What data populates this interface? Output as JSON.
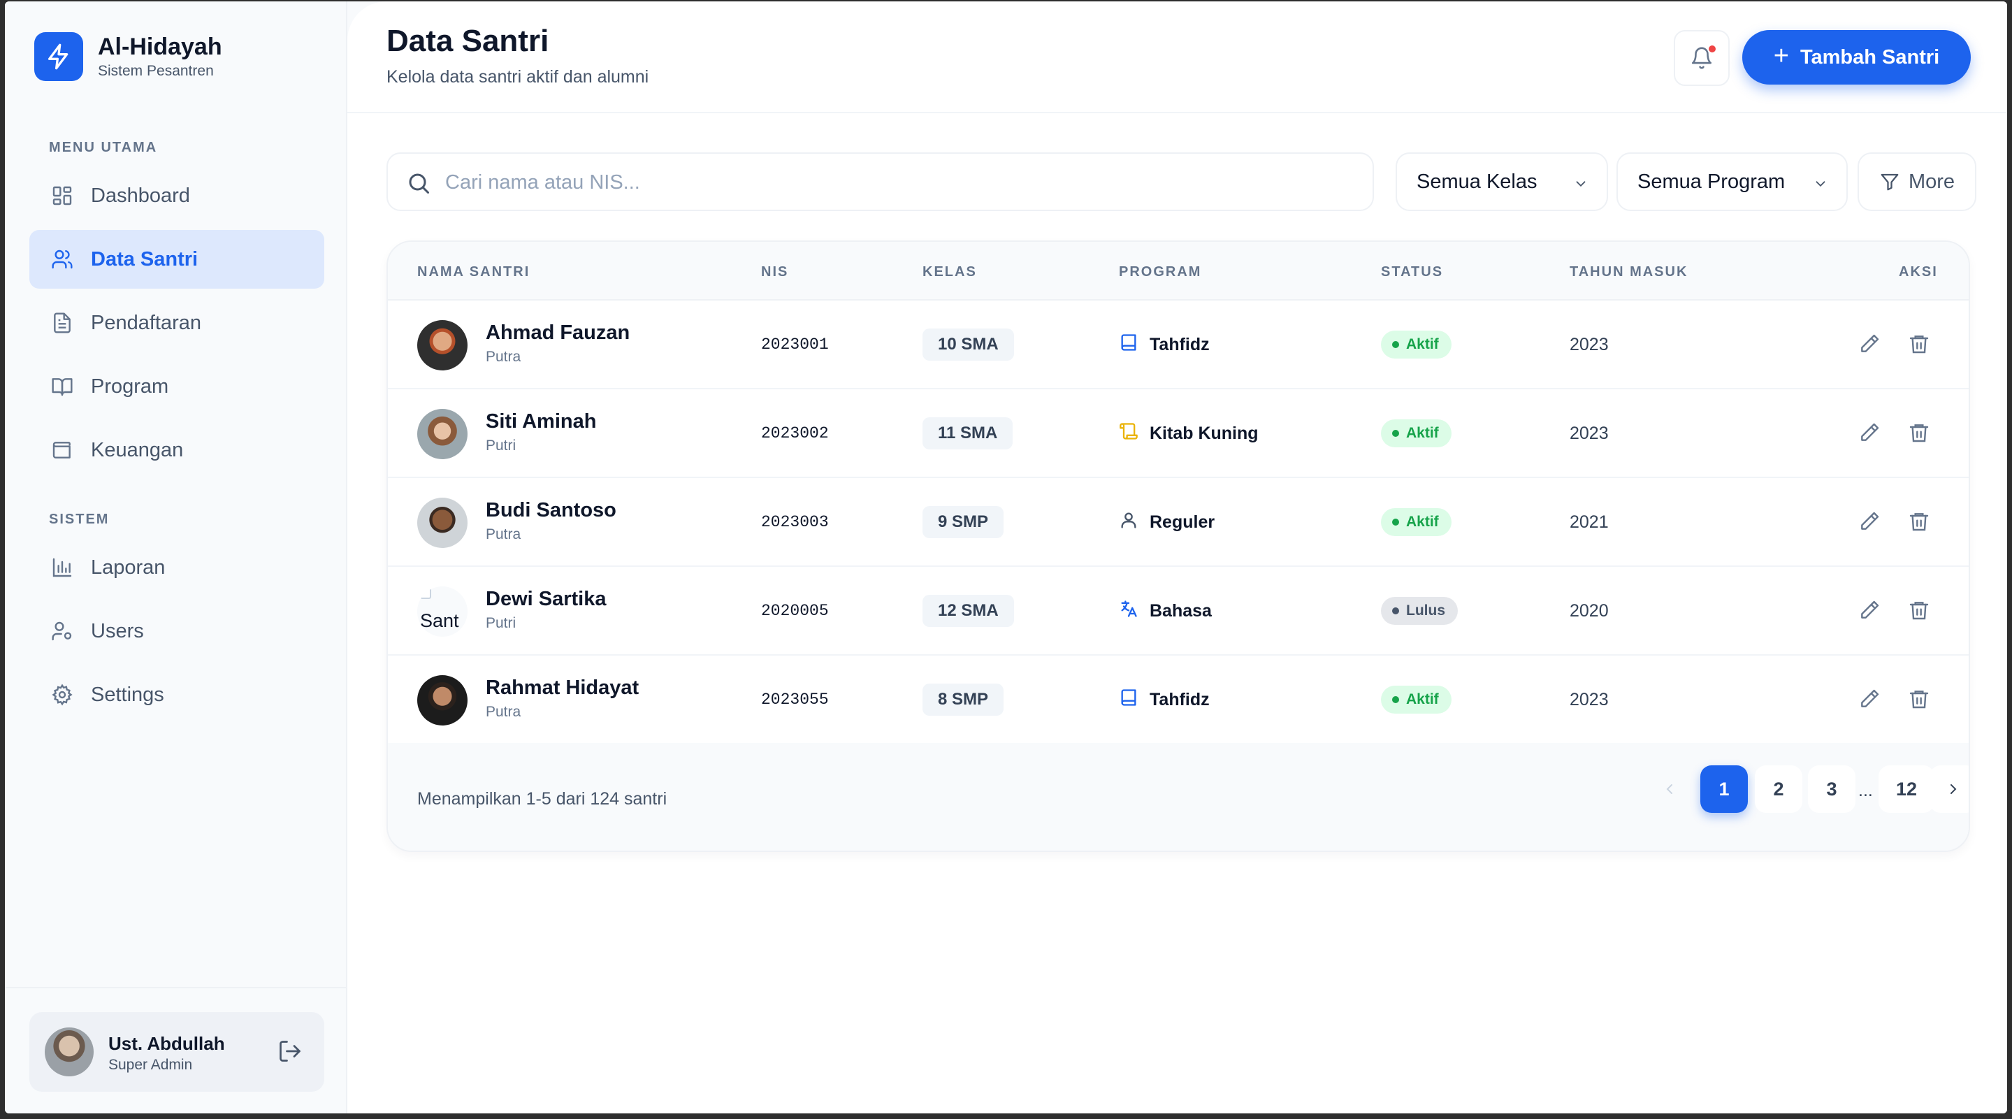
{
  "app": {
    "name": "Al-Hidayah",
    "subtitle": "Sistem Pesantren"
  },
  "sidebar": {
    "sections": [
      {
        "label": "MENU UTAMA"
      },
      {
        "label": "SISTEM"
      }
    ],
    "items": [
      {
        "label": "Dashboard",
        "icon": "grid-icon",
        "active": false
      },
      {
        "label": "Data Santri",
        "icon": "users-icon",
        "active": true
      },
      {
        "label": "Pendaftaran",
        "icon": "document-icon",
        "active": false
      },
      {
        "label": "Program",
        "icon": "book-open-icon",
        "active": false
      },
      {
        "label": "Keuangan",
        "icon": "wallet-icon",
        "active": false
      },
      {
        "label": "Laporan",
        "icon": "bar-chart-icon",
        "active": false
      },
      {
        "label": "Users",
        "icon": "user-cog-icon",
        "active": false
      },
      {
        "label": "Settings",
        "icon": "gear-icon",
        "active": false
      }
    ],
    "user": {
      "name": "Ust. Abdullah",
      "role": "Super Admin"
    }
  },
  "header": {
    "title": "Data Santri",
    "subtitle": "Kelola data santri aktif dan alumni",
    "add_button": "Tambah Santri"
  },
  "filters": {
    "search_placeholder": "Cari nama atau NIS...",
    "kelas": "Semua Kelas",
    "program": "Semua Program",
    "more": "More"
  },
  "table": {
    "columns": [
      "NAMA SANTRI",
      "NIS",
      "KELAS",
      "PROGRAM",
      "STATUS",
      "TAHUN MASUK",
      "AKSI"
    ],
    "rows": [
      {
        "name": "Ahmad Fauzan",
        "gender": "Putra",
        "nis": "2023001",
        "kelas": "10 SMA",
        "program": "Tahfidz",
        "program_icon": "book-icon",
        "status": "Aktif",
        "tahun": "2023"
      },
      {
        "name": "Siti Aminah",
        "gender": "Putri",
        "nis": "2023002",
        "kelas": "11 SMA",
        "program": "Kitab Kuning",
        "program_icon": "scroll-icon",
        "status": "Aktif",
        "tahun": "2023"
      },
      {
        "name": "Budi Santoso",
        "gender": "Putra",
        "nis": "2023003",
        "kelas": "9 SMP",
        "program": "Reguler",
        "program_icon": "user-icon",
        "status": "Aktif",
        "tahun": "2021"
      },
      {
        "name": "Dewi Sartika",
        "gender": "Putri",
        "nis": "2020005",
        "kelas": "12 SMA",
        "program": "Bahasa",
        "program_icon": "languages-icon",
        "status": "Lulus",
        "tahun": "2020"
      },
      {
        "name": "Rahmat Hidayat",
        "gender": "Putra",
        "nis": "2023055",
        "kelas": "8 SMP",
        "program": "Tahfidz",
        "program_icon": "book-icon",
        "status": "Aktif",
        "tahun": "2023"
      }
    ],
    "broken_avatar_alt": "Sant"
  },
  "footer": {
    "info": "Menampilkan 1-5 dari 124 santri",
    "pages": [
      "1",
      "2",
      "3",
      "12"
    ],
    "ellipsis": "...",
    "current_page": "1"
  },
  "colors": {
    "accent": "#1d63ed",
    "aktif": "#16a34a",
    "lulus": "#475569",
    "notification": "#ef4444",
    "kitab": "#eab308"
  }
}
